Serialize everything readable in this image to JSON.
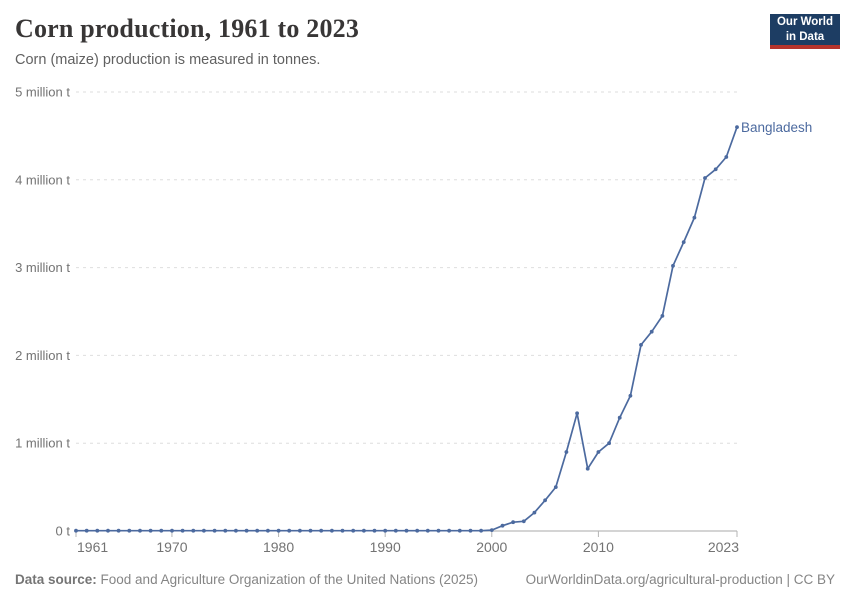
{
  "header": {
    "title": "Corn production, 1961 to 2023",
    "subtitle": "Corn (maize) production is measured in tonnes."
  },
  "logo": {
    "line1": "Our World",
    "line2": "in Data",
    "bg_color": "#1d3d63",
    "accent_color": "#b5342c"
  },
  "chart_data": {
    "type": "line",
    "title": "Corn production, 1961 to 2023",
    "unit": "tonnes",
    "entity_label": "Bangladesh",
    "line_color": "#4c6a9f",
    "grid": "horizontal-dashed",
    "legend_position": "end-of-line-label",
    "xlim": [
      1961,
      2023
    ],
    "ylim": [
      0,
      5
    ],
    "ylabel": "million tonnes",
    "xlabel": "",
    "x_ticks": [
      1961,
      1970,
      1980,
      1990,
      2000,
      2010,
      2023
    ],
    "y_ticks": [
      {
        "value": 0,
        "label": "0 t"
      },
      {
        "value": 1,
        "label": "1 million t"
      },
      {
        "value": 2,
        "label": "2 million t"
      },
      {
        "value": 3,
        "label": "3 million t"
      },
      {
        "value": 4,
        "label": "4 million t"
      },
      {
        "value": 5,
        "label": "5 million t"
      }
    ],
    "x": [
      1961,
      1962,
      1963,
      1964,
      1965,
      1966,
      1967,
      1968,
      1969,
      1970,
      1971,
      1972,
      1973,
      1974,
      1975,
      1976,
      1977,
      1978,
      1979,
      1980,
      1981,
      1982,
      1983,
      1984,
      1985,
      1986,
      1987,
      1988,
      1989,
      1990,
      1991,
      1992,
      1993,
      1994,
      1995,
      1996,
      1997,
      1998,
      1999,
      2000,
      2001,
      2002,
      2003,
      2004,
      2005,
      2006,
      2007,
      2008,
      2009,
      2010,
      2011,
      2012,
      2013,
      2014,
      2015,
      2016,
      2017,
      2018,
      2019,
      2020,
      2021,
      2022,
      2023
    ],
    "series": [
      {
        "name": "Bangladesh",
        "values_million_t": [
          0.003,
          0.003,
          0.003,
          0.003,
          0.003,
          0.003,
          0.003,
          0.003,
          0.003,
          0.003,
          0.003,
          0.003,
          0.003,
          0.003,
          0.003,
          0.003,
          0.003,
          0.003,
          0.003,
          0.003,
          0.003,
          0.003,
          0.003,
          0.003,
          0.003,
          0.003,
          0.003,
          0.003,
          0.003,
          0.003,
          0.003,
          0.003,
          0.003,
          0.003,
          0.003,
          0.003,
          0.003,
          0.003,
          0.003,
          0.01,
          0.06,
          0.1,
          0.11,
          0.21,
          0.35,
          0.5,
          0.9,
          1.34,
          0.71,
          0.9,
          1.0,
          1.29,
          1.54,
          2.12,
          2.27,
          2.45,
          3.02,
          3.29,
          3.57,
          4.02,
          4.12,
          4.26,
          4.6
        ]
      }
    ]
  },
  "footer": {
    "source_label": "Data source:",
    "source_text": " Food and Agriculture Organization of the United Nations (2025)",
    "link_text": "OurWorldinData.org/agricultural-production | CC BY"
  }
}
